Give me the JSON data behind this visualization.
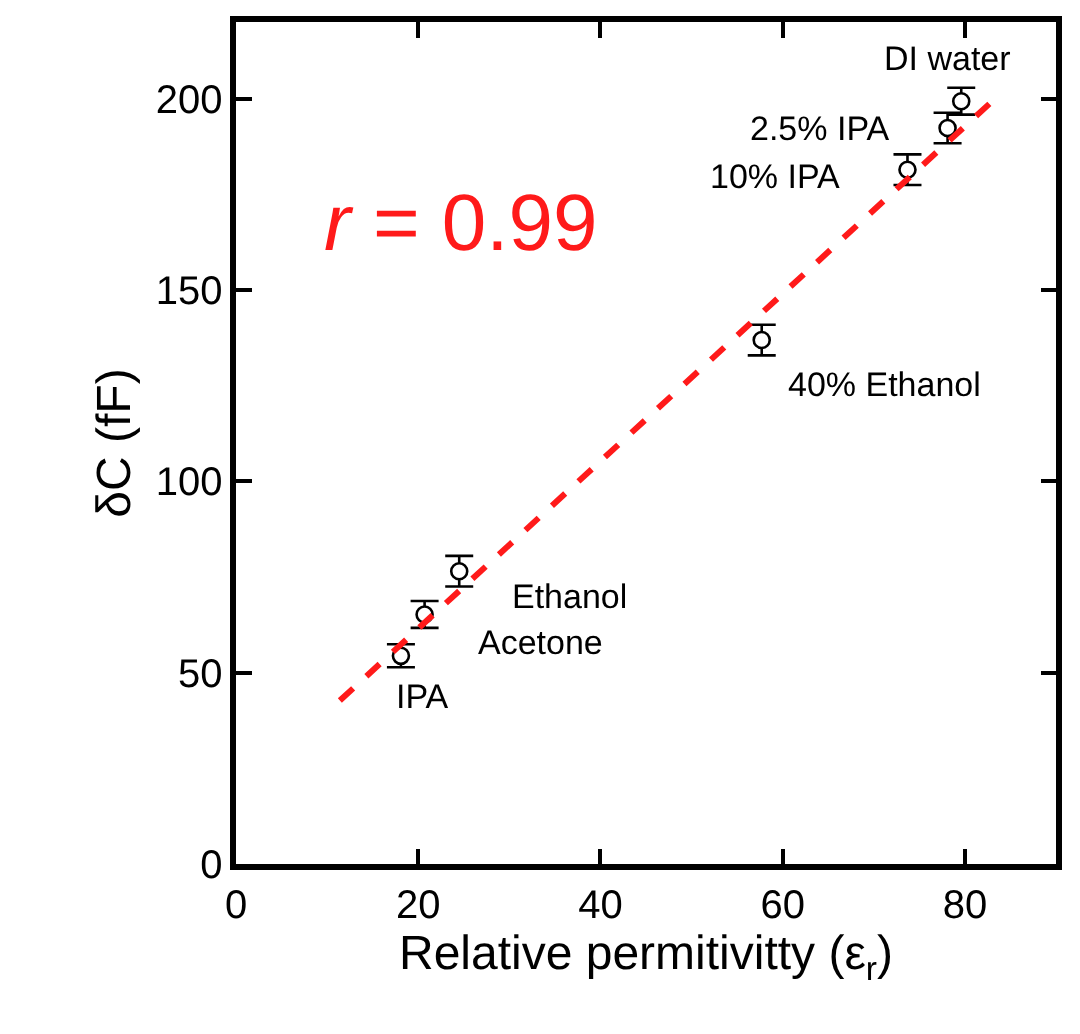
{
  "chart_data": {
    "type": "scatter",
    "xlabel": "Relative permitivitty (ε$_{r}$)",
    "ylabel": "δC (fF)",
    "xlim": [
      0,
      90
    ],
    "xticks": [
      0,
      20,
      40,
      60,
      80
    ],
    "ylim": [
      0,
      220
    ],
    "yticks": [
      0,
      50,
      100,
      150,
      200
    ],
    "grid": false,
    "series": [
      {
        "color": "#000000",
        "x": [
          18.1,
          20.7,
          24.5,
          57.7,
          73.7,
          78.1,
          79.6
        ],
        "values": [
          54.4,
          65.2,
          76.5,
          136.9,
          181.4,
          192.3,
          199.3
        ],
        "errors": [
          3,
          3.5,
          4,
          4,
          4,
          4,
          3.5
        ]
      },
      {
        "type": "line",
        "color": "#ff1a1a",
        "line_style": "dashed",
        "marker": "none",
        "x": [
          11.4,
          83.0
        ],
        "values": [
          42.7,
          199.3
        ]
      }
    ],
    "annotations": [
      "r = 0.99",
      {
        "text": "IPA",
        "x": 18.1,
        "y": 54.4
      },
      {
        "text": "Acetone",
        "x": 20.7,
        "y": 65.2
      },
      {
        "text": "Ethanol",
        "x": 24.5,
        "y": 76.5
      },
      {
        "text": "40% Ethanol",
        "x": 57.7,
        "y": 136.9
      },
      {
        "text": "10% IPA",
        "x": 73.7,
        "y": 181.4
      },
      {
        "text": "2.5% IPA",
        "x": 78.1,
        "y": 192.3
      },
      {
        "text": "DI water",
        "x": 79.6,
        "y": 199.3
      }
    ]
  }
}
